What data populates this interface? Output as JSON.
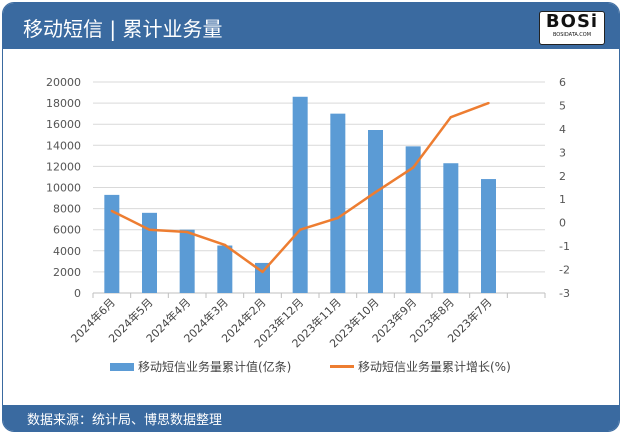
{
  "header": {
    "title": "移动短信 | 累计业务量",
    "logo_text": "BOSi",
    "logo_sub": "BOSIDATA.COM"
  },
  "footer": {
    "source": "数据来源：统计局、博思数据整理"
  },
  "colors": {
    "header": "#3a6aa0",
    "bar": "#5b9bd5",
    "line": "#ed7d31"
  },
  "chart_data": {
    "type": "bar+line",
    "categories": [
      "2024年6月",
      "2024年5月",
      "2024年4月",
      "2024年3月",
      "2024年2月",
      "2023年12月",
      "2023年11月",
      "2023年10月",
      "2023年9月",
      "2023年8月",
      "2023年7月"
    ],
    "series": [
      {
        "name": "移动短信业务量累计值(亿条)",
        "type": "bar",
        "axis": "left",
        "values": [
          9300,
          7600,
          6000,
          4500,
          2850,
          18600,
          17000,
          15450,
          13900,
          12300,
          10800
        ]
      },
      {
        "name": "移动短信业务量累计增长(%)",
        "type": "line",
        "axis": "right",
        "values": [
          0.5,
          -0.3,
          -0.4,
          -0.95,
          -2.1,
          -0.3,
          0.2,
          1.3,
          2.35,
          4.5,
          5.1
        ]
      }
    ],
    "ylim_left": [
      0,
      20000
    ],
    "yticks_left": [
      "0",
      "2000",
      "4000",
      "6000",
      "8000",
      "10000",
      "12000",
      "14000",
      "16000",
      "18000",
      "20000"
    ],
    "ylim_right": [
      -3,
      6
    ],
    "yticks_right": [
      "-3",
      "-2",
      "-1",
      "0",
      "1",
      "2",
      "3",
      "4",
      "5",
      "6"
    ],
    "grid": true,
    "legend": "bottom"
  }
}
